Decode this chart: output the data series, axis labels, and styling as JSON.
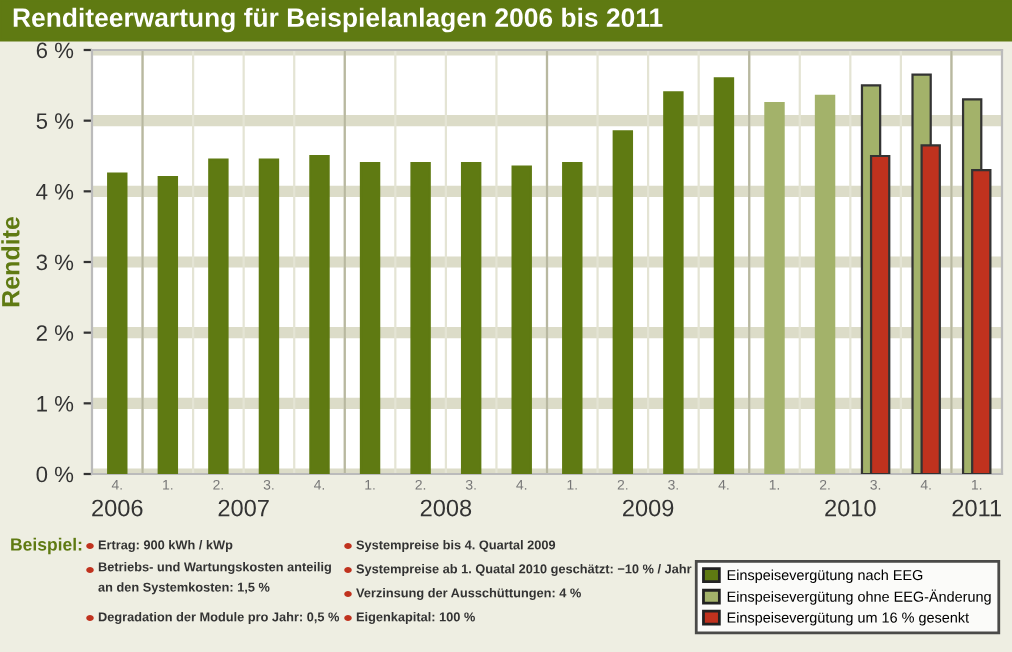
{
  "chart_data": {
    "type": "bar",
    "title": "Renditeerwartung für Beispielanlagen 2006 bis 2011",
    "ylabel": "Rendite",
    "categories": [
      "4.",
      "1.",
      "2.",
      "3.",
      "4.",
      "1.",
      "2.",
      "3.",
      "4.",
      "1.",
      "2.",
      "3.",
      "4.",
      "1.",
      "2.",
      "3.",
      "4.",
      "1."
    ],
    "series": [
      {
        "name": "Einspeisevergütung nach EEG",
        "color": "#5f7a12",
        "values": [
          4.25,
          4.2,
          4.45,
          4.45,
          4.5,
          4.4,
          4.4,
          4.4,
          4.35,
          4.4,
          4.85,
          5.4,
          5.6,
          null,
          null,
          null,
          null,
          null
        ]
      },
      {
        "name": "Einspeisevergütung ohne EEG-Änderung",
        "color": "#a3b26a",
        "values": [
          null,
          null,
          null,
          null,
          null,
          null,
          null,
          null,
          null,
          null,
          null,
          null,
          null,
          5.25,
          5.35,
          5.5,
          5.65,
          5.3
        ]
      },
      {
        "name": "Einspeisevergütung um 16 % gesenkt",
        "color": "#c0321e",
        "values": [
          null,
          null,
          null,
          null,
          null,
          null,
          null,
          null,
          null,
          null,
          null,
          null,
          null,
          null,
          null,
          4.5,
          4.65,
          4.3
        ]
      }
    ],
    "ylim": [
      0,
      6
    ],
    "yticks": [
      {
        "value": 0,
        "label": "0 %"
      },
      {
        "value": 1,
        "label": "1 %"
      },
      {
        "value": 2,
        "label": "2 %"
      },
      {
        "value": 3,
        "label": "3 %"
      },
      {
        "value": 4,
        "label": "4 %"
      },
      {
        "value": 5,
        "label": "5 %"
      },
      {
        "value": 6,
        "label": "6 %"
      }
    ],
    "grid": "y",
    "legend": "bottom right",
    "annotations": [
      "2006",
      "2007",
      "2008",
      "2009",
      "2010",
      "2011",
      "Beispiel:",
      "Ertrag: 900 kWh / kWp",
      "Betriebs- und Wartungskosten anteilig\nan den Systemkosten: 1,5 %",
      "Degradation der Module pro Jahr: 0,5 %",
      "Systempreise bis 4. Quartal 2009",
      "Systempreise ab 1. Quatal 2010 geschätzt: −10 % / Jahr",
      "Verzinsung der Ausschüttungen: 4 %",
      "Eigenkapital: 100 %"
    ]
  }
}
